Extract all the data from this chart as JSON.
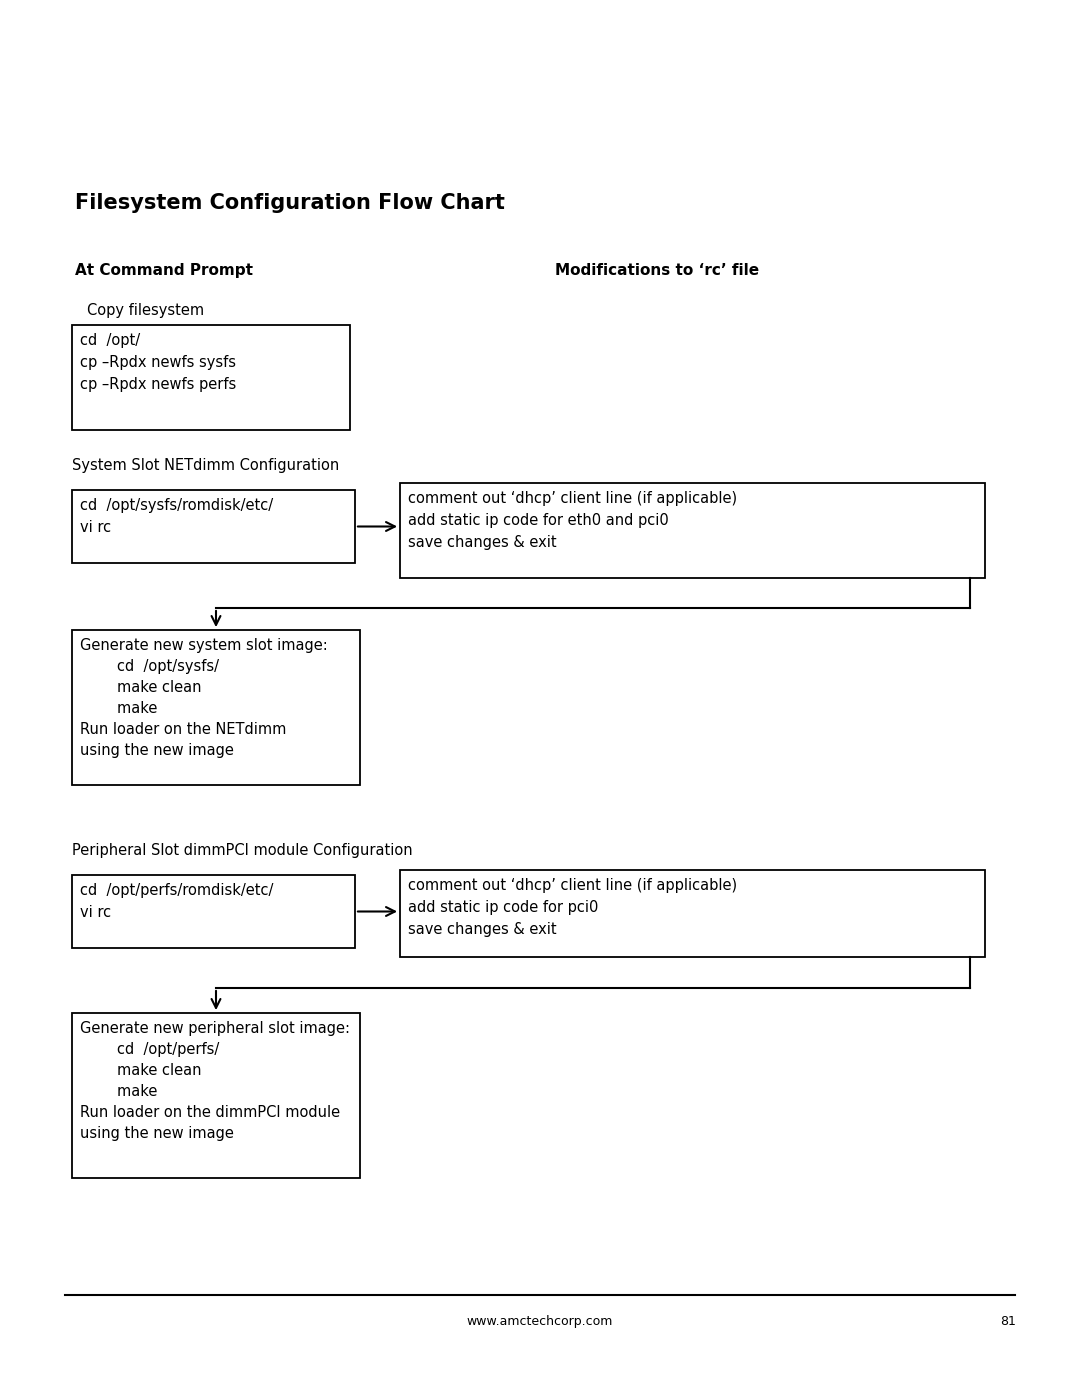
{
  "title": "Filesystem Configuration Flow Chart",
  "col_left_label": "At Command Prompt",
  "col_right_label": "Modifications to ‘rc’ file",
  "copy_filesystem_label": "Copy filesystem",
  "box1_text": "cd  /opt/\ncp –Rpdx newfs sysfs\ncp –Rpdx newfs perfs",
  "system_slot_label": "System Slot NETdimm Configuration",
  "box2_left_text": "cd  /opt/sysfs/romdisk/etc/\nvi rc",
  "box2_right_text": "comment out ‘dhcp’ client line (if applicable)\nadd static ip code for eth0 and pci0\nsave changes & exit",
  "box3_text": "Generate new system slot image:\n        cd  /opt/sysfs/\n        make clean\n        make\nRun loader on the NETdimm\nusing the new image",
  "peripheral_slot_label": "Peripheral Slot dimmPCI module Configuration",
  "box4_left_text": "cd  /opt/perfs/romdisk/etc/\nvi rc",
  "box4_right_text": "comment out ‘dhcp’ client line (if applicable)\nadd static ip code for pci0\nsave changes & exit",
  "box5_text": "Generate new peripheral slot image:\n        cd  /opt/perfs/\n        make clean\n        make\nRun loader on the dimmPCI module\nusing the new image",
  "footer_url": "www.amctechcorp.com",
  "footer_page": "81",
  "bg_color": "#ffffff",
  "text_color": "#000000",
  "box_edge_color": "#000000",
  "line_color": "#000000"
}
